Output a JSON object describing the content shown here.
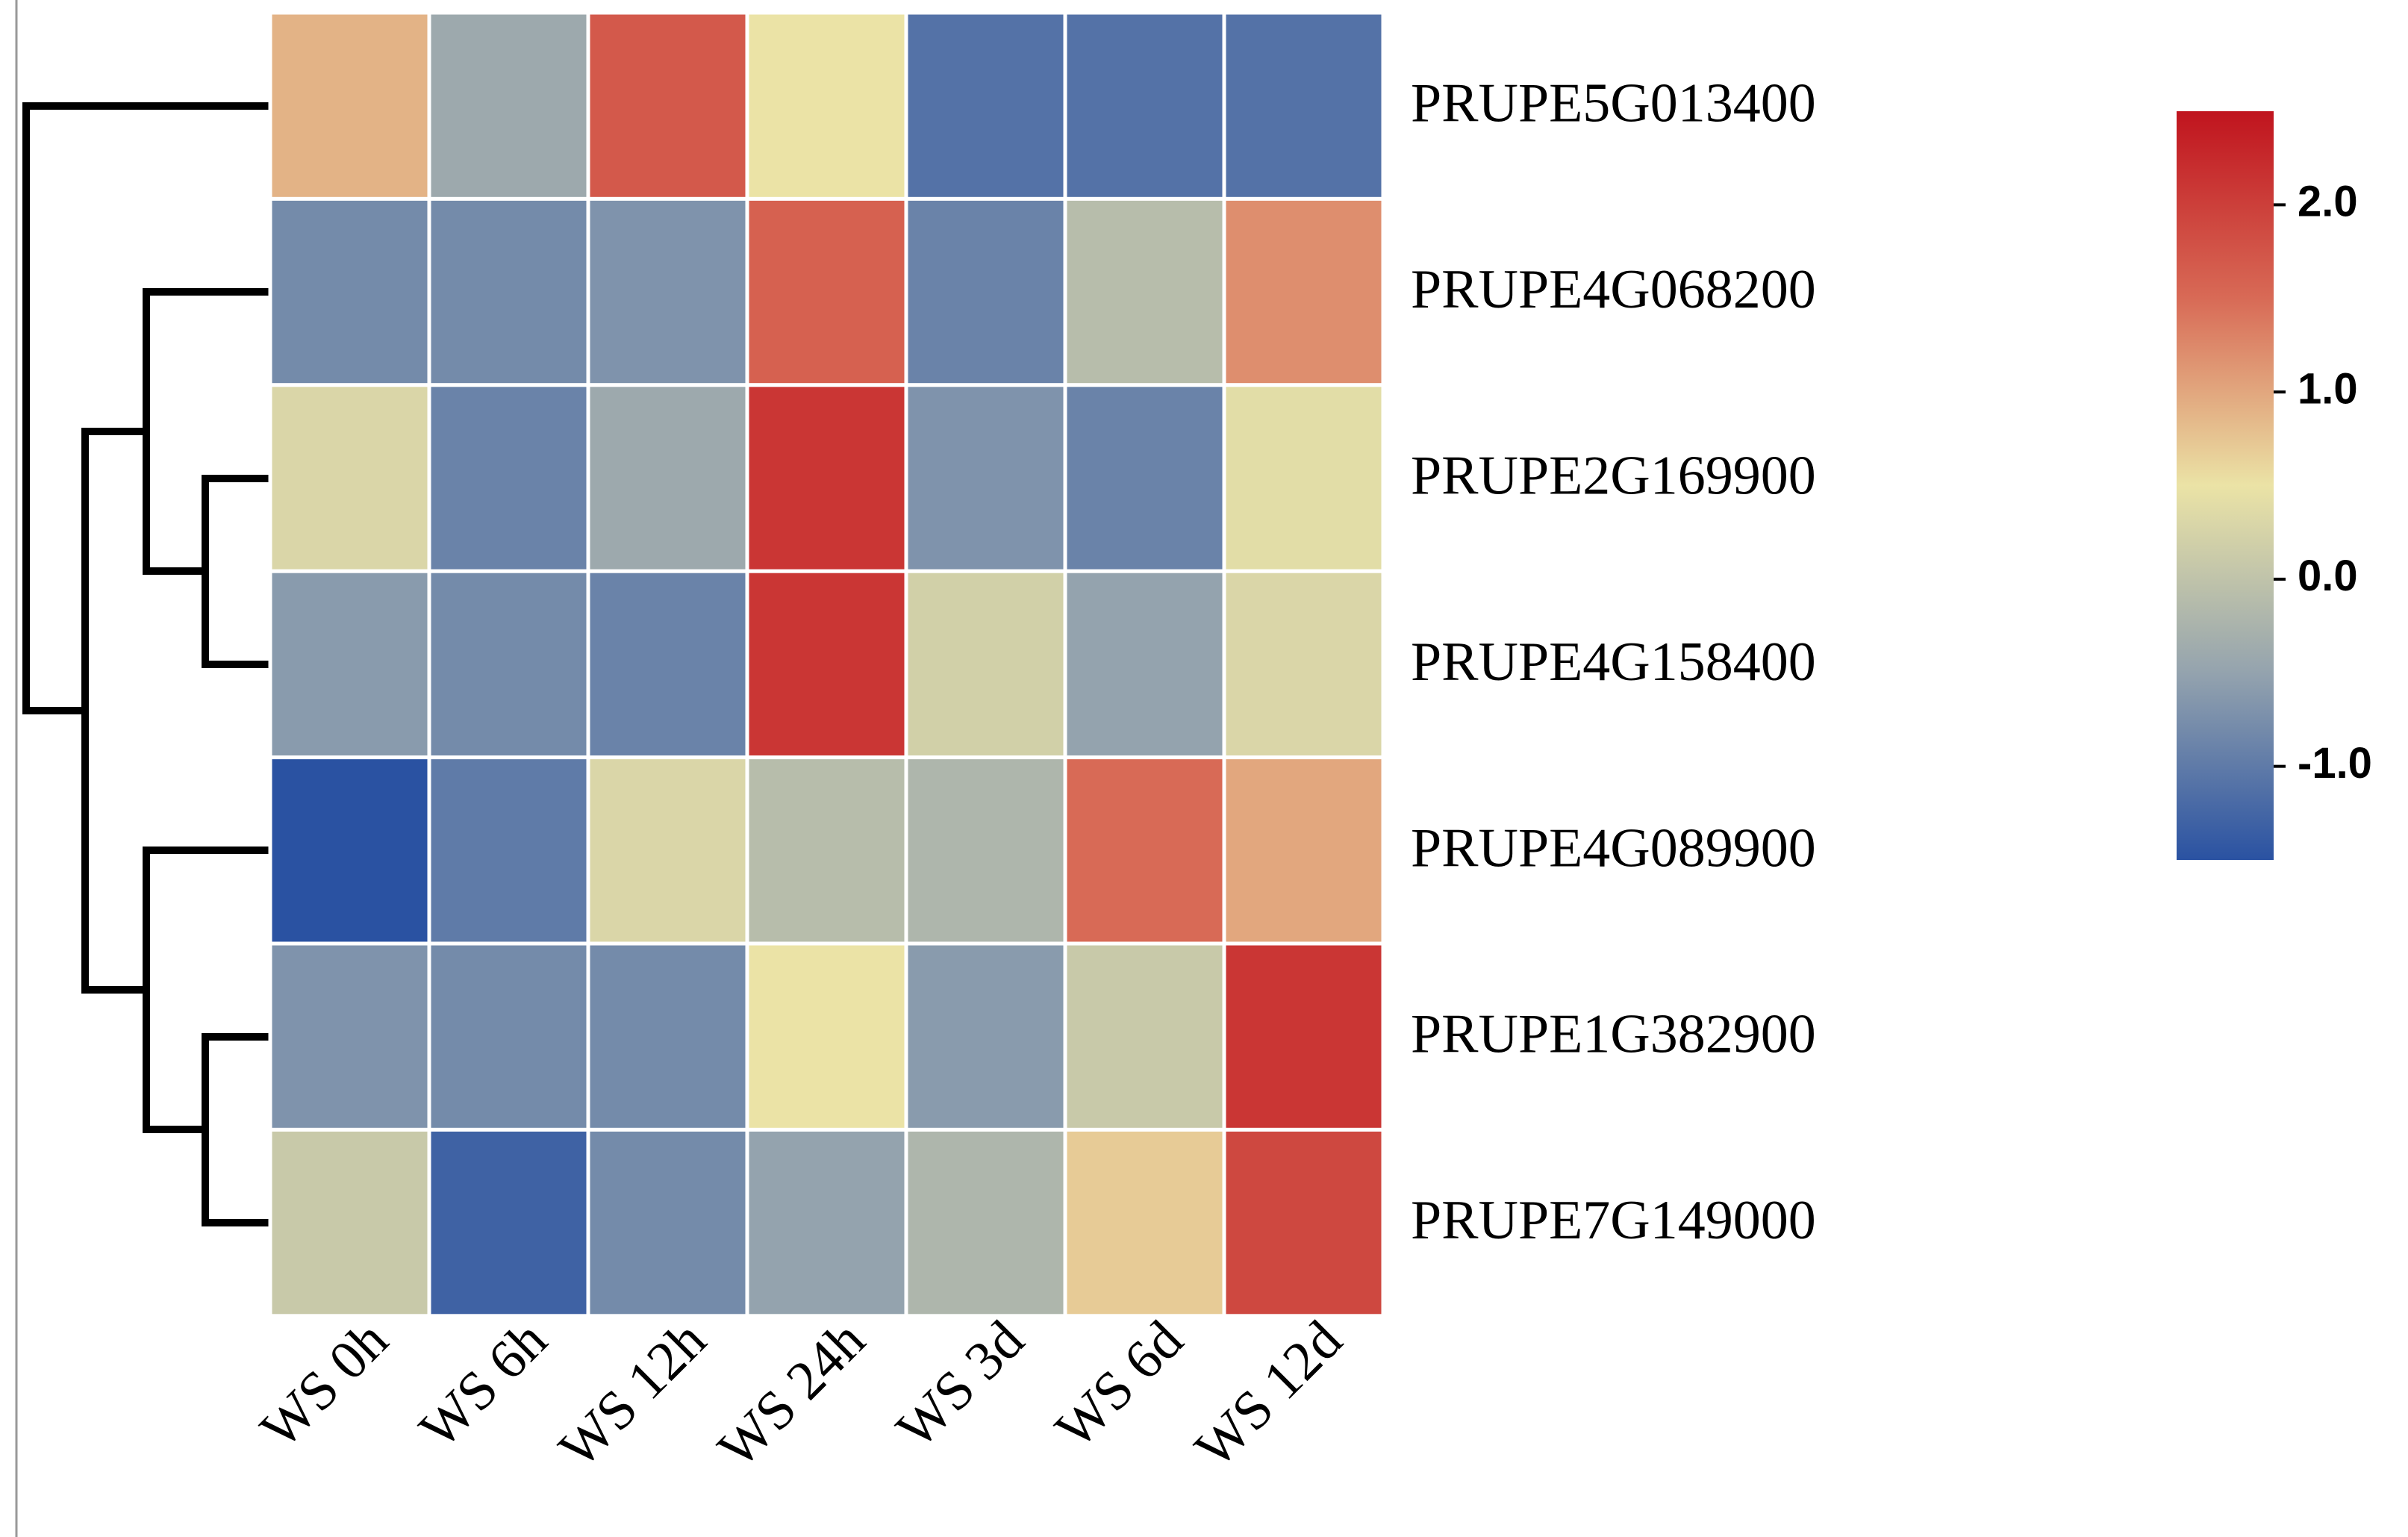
{
  "chart_data": {
    "type": "heatmap",
    "columns": [
      "WS 0h",
      "WS 6h",
      "WS 12h",
      "WS 24h",
      "WS 3d",
      "WS 6d",
      "WS 12d"
    ],
    "rows": [
      "PRUPE5G013400",
      "PRUPE4G068200",
      "PRUPE2G169900",
      "PRUPE4G158400",
      "PRUPE4G089900",
      "PRUPE1G382900",
      "PRUPE7G149000"
    ],
    "values": [
      [
        0.9,
        -0.4,
        1.7,
        0.5,
        -1.1,
        -1.1,
        -1.1
      ],
      [
        -0.8,
        -0.8,
        -0.7,
        1.6,
        -0.9,
        -0.1,
        1.2
      ],
      [
        0.3,
        -0.9,
        -0.4,
        2.1,
        -0.7,
        -0.9,
        0.4
      ],
      [
        -0.6,
        -0.8,
        -0.9,
        2.1,
        0.2,
        -0.5,
        0.3
      ],
      [
        -1.5,
        -1.0,
        0.3,
        -0.1,
        -0.2,
        1.5,
        1.0
      ],
      [
        -0.7,
        -0.8,
        -0.8,
        0.5,
        -0.6,
        0.1,
        2.1
      ],
      [
        0.1,
        -1.3,
        -0.8,
        -0.5,
        -0.2,
        0.7,
        1.9
      ]
    ],
    "zlim": [
      -1.5,
      2.5
    ],
    "zticks": [
      {
        "value": -1,
        "label": "-1.0"
      },
      {
        "value": 0,
        "label": "0.0"
      },
      {
        "value": 1,
        "label": "1.0"
      },
      {
        "value": 2,
        "label": "2.0"
      }
    ],
    "colorscale": [
      "#2a52a2",
      "#94a3ae",
      "#ebe3a6",
      "#d86a56",
      "#c0141e"
    ]
  }
}
